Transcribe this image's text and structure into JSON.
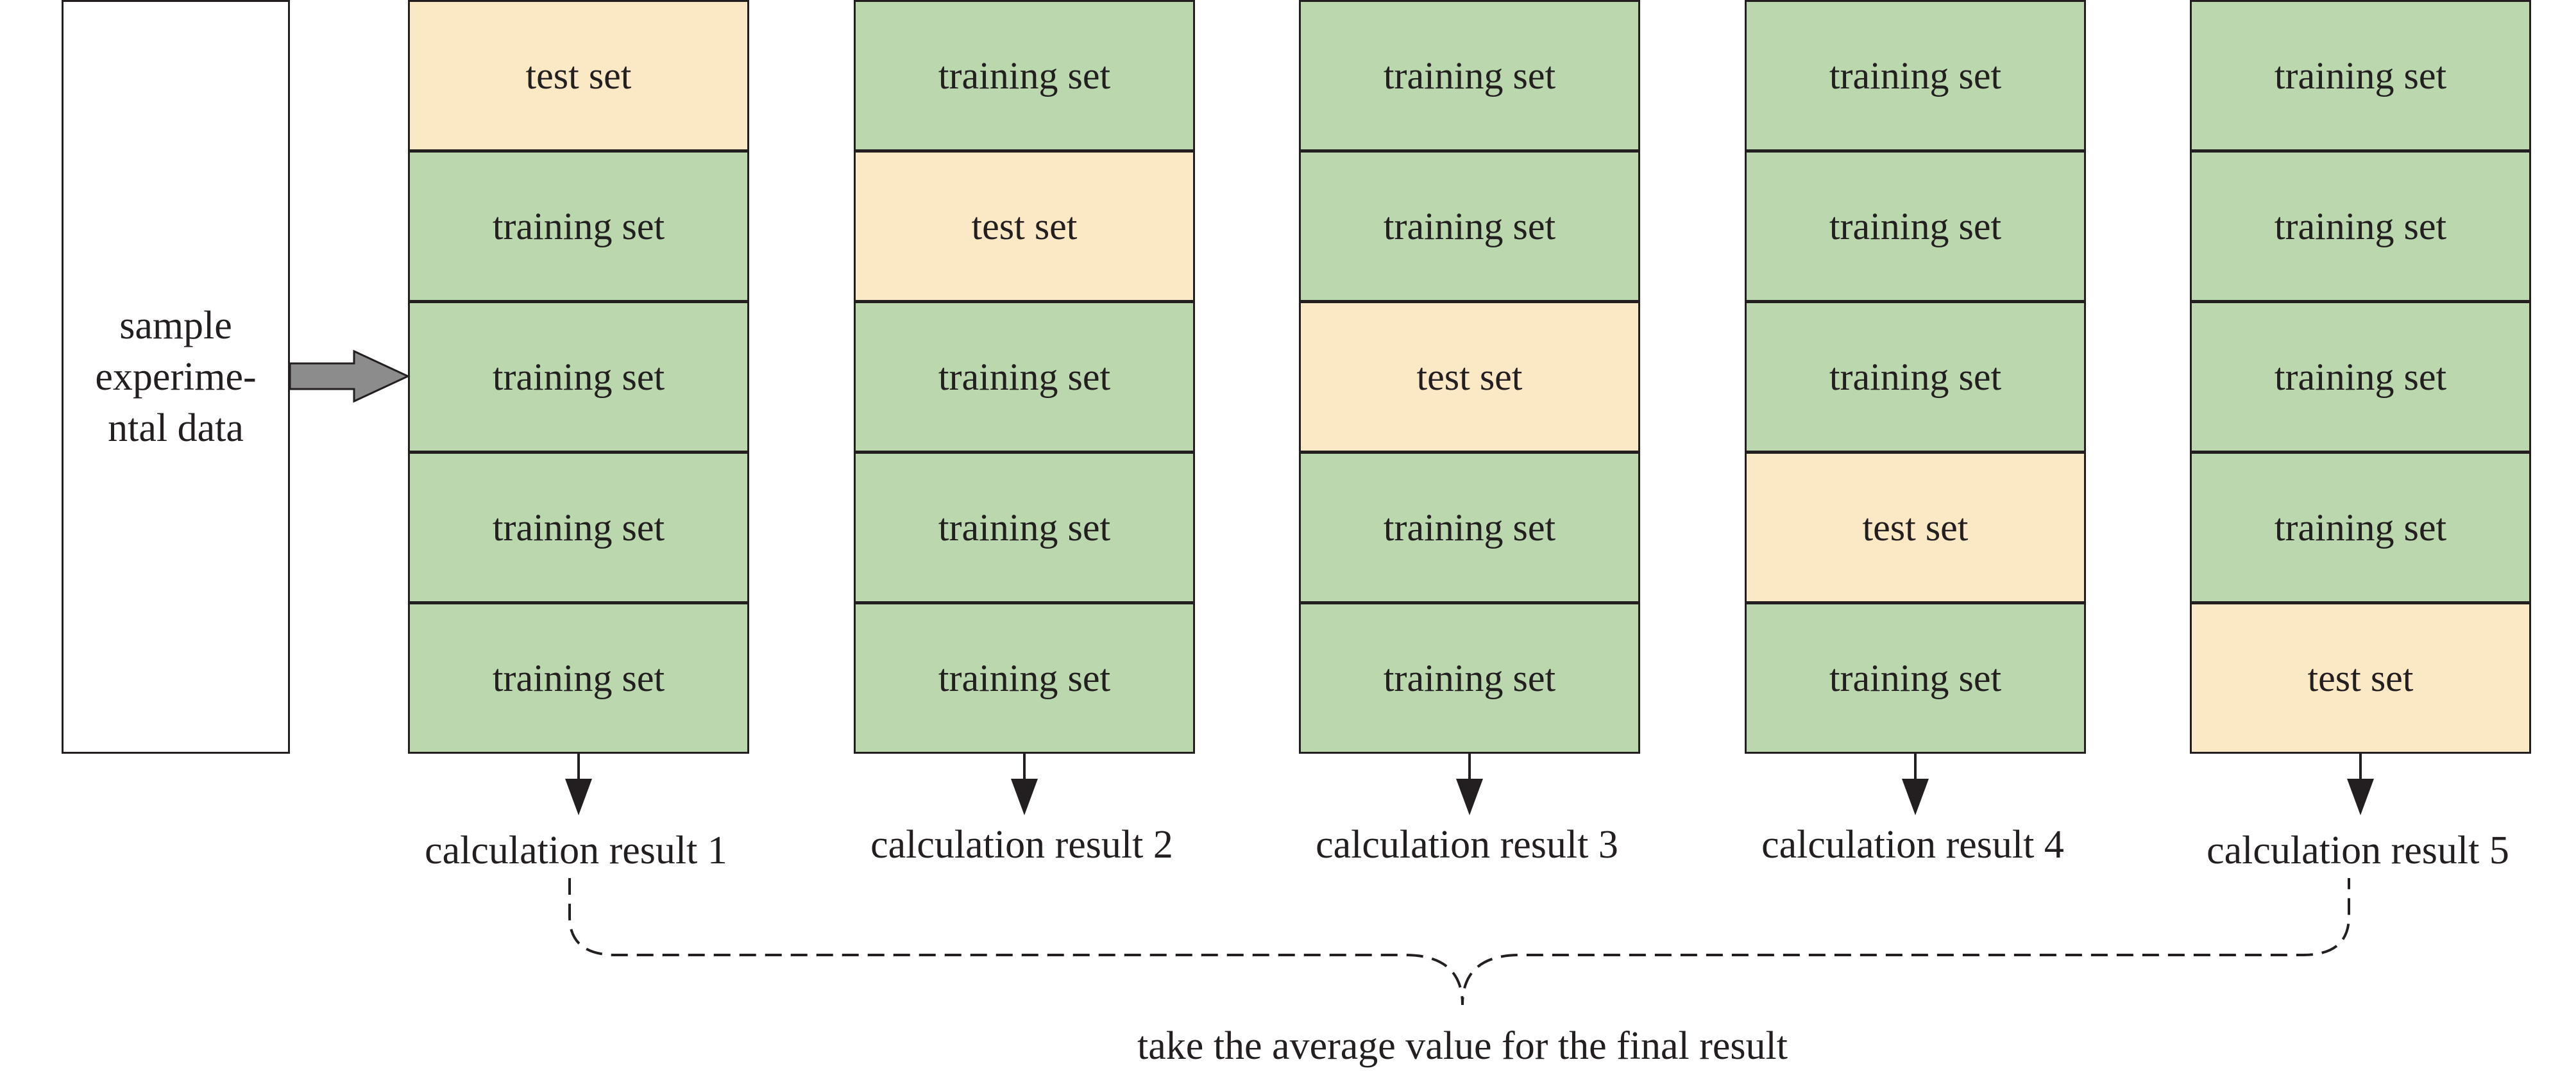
{
  "input": {
    "lines": [
      "sample",
      "experime-",
      "ntal data"
    ]
  },
  "folds": [
    {
      "cells": [
        "test set",
        "training set",
        "training set",
        "training set",
        "training set"
      ],
      "roles": [
        "test",
        "training",
        "training",
        "training",
        "training"
      ],
      "result": "calculation result 1"
    },
    {
      "cells": [
        "training set",
        "test set",
        "training set",
        "training set",
        "training set"
      ],
      "roles": [
        "training",
        "test",
        "training",
        "training",
        "training"
      ],
      "result": "calculation result 2"
    },
    {
      "cells": [
        "training set",
        "training set",
        "test set",
        "training set",
        "training set"
      ],
      "roles": [
        "training",
        "training",
        "test",
        "training",
        "training"
      ],
      "result": "calculation result 3"
    },
    {
      "cells": [
        "training set",
        "training set",
        "training set",
        "test set",
        "training set"
      ],
      "roles": [
        "training",
        "training",
        "training",
        "test",
        "training"
      ],
      "result": "calculation result 4"
    },
    {
      "cells": [
        "training set",
        "training set",
        "training set",
        "training set",
        "test set"
      ],
      "roles": [
        "training",
        "training",
        "training",
        "training",
        "test"
      ],
      "result": "calculation result 5"
    }
  ],
  "final": "take the average value for the final result",
  "colors": {
    "training": "#bad7ad",
    "test": "#fbe8c5",
    "stroke": "#231f20",
    "arrow_fill": "#8c8c8c"
  }
}
